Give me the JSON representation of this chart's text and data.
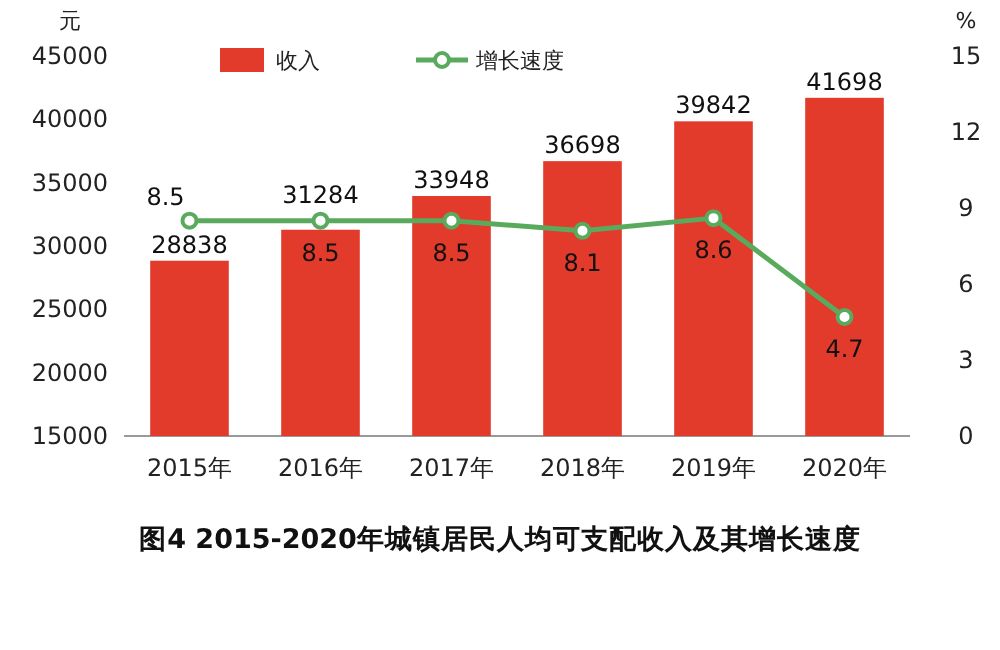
{
  "chart_data": {
    "type": "bar",
    "title": "图4  2015-2020年城镇居民人均可支配收入及其增长速度",
    "ylabel": "元",
    "y2label": "%",
    "categories": [
      "2015年",
      "2016年",
      "2017年",
      "2018年",
      "2019年",
      "2020年"
    ],
    "series": [
      {
        "name": "收入",
        "color": "#e23a2b",
        "values": [
          28838,
          31284,
          33948,
          36698,
          39842,
          41698
        ]
      },
      {
        "name": "增长速度",
        "type": "line",
        "axis": "y2",
        "color": "#5aaa5e",
        "values": [
          8.5,
          8.5,
          8.5,
          8.1,
          8.6,
          4.7
        ]
      }
    ],
    "ylim": [
      15000,
      45000
    ],
    "yticks": [
      15000,
      20000,
      25000,
      30000,
      35000,
      40000,
      45000
    ],
    "y2lim": [
      0,
      15
    ],
    "y2ticks": [
      0,
      3,
      6,
      9,
      12,
      15
    ],
    "marker": "circle",
    "legend": "top",
    "data_labels": true,
    "grid": false
  }
}
